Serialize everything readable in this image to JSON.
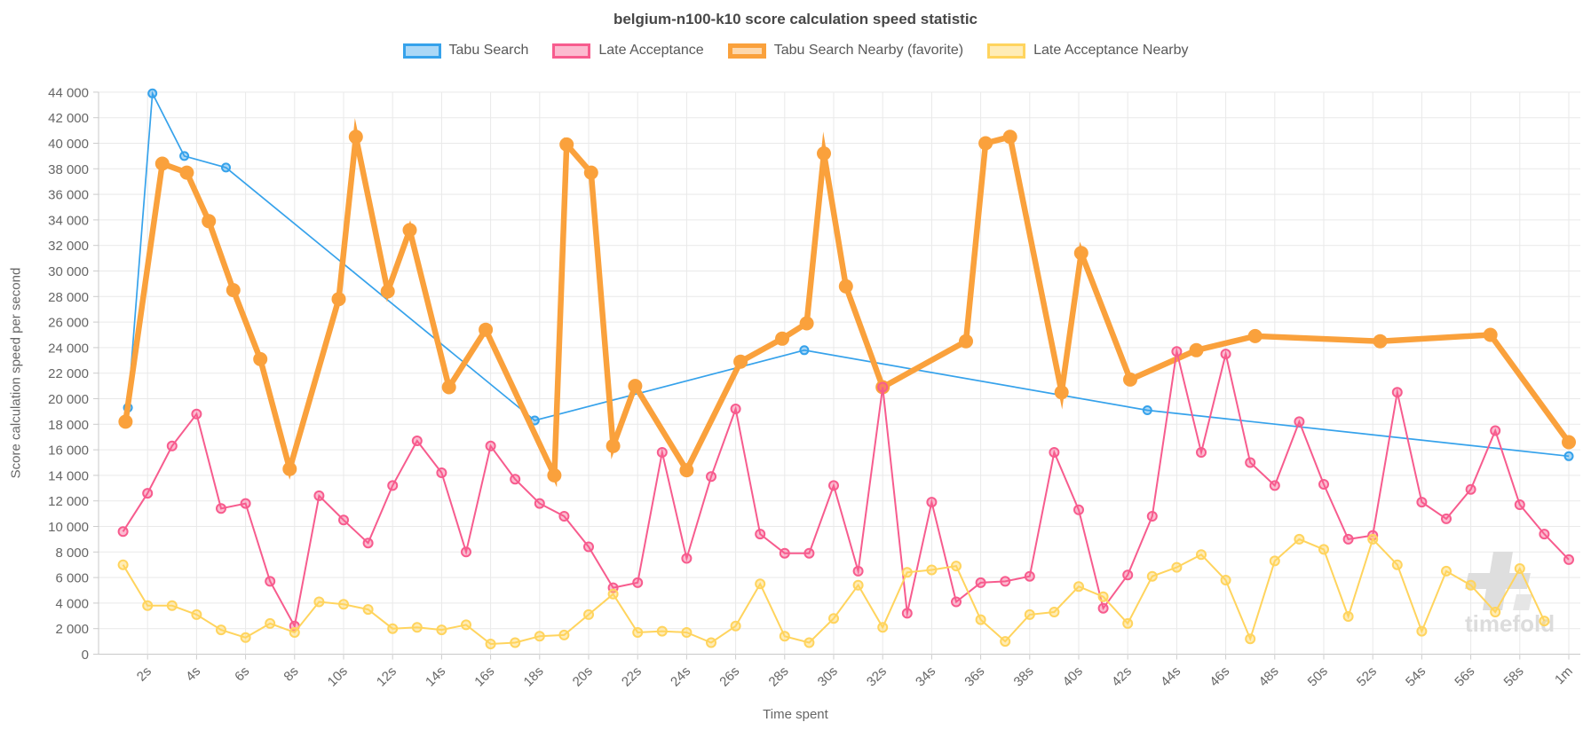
{
  "title": "belgium-n100-k10 score calculation speed statistic",
  "watermark": {
    "text": "timefold"
  },
  "chart_data": {
    "type": "line",
    "title": "belgium-n100-k10 score calculation speed statistic",
    "xlabel": "Time spent",
    "ylabel": "Score calculation speed per second",
    "ylim": [
      0,
      44000
    ],
    "y_tick_step": 2000,
    "grid": true,
    "legend_position": "top",
    "x_unit": "seconds",
    "xlim": [
      0,
      60.5
    ],
    "y_tick_labels": [
      "0",
      "2 000",
      "4 000",
      "6 000",
      "8 000",
      "10 000",
      "12 000",
      "14 000",
      "16 000",
      "18 000",
      "20 000",
      "22 000",
      "24 000",
      "26 000",
      "28 000",
      "30 000",
      "32 000",
      "34 000",
      "36 000",
      "38 000",
      "40 000",
      "42 000",
      "44 000"
    ],
    "x_ticks": [
      {
        "t": 2,
        "label": "2s"
      },
      {
        "t": 4,
        "label": "4s"
      },
      {
        "t": 6,
        "label": "6s"
      },
      {
        "t": 8,
        "label": "8s"
      },
      {
        "t": 10,
        "label": "10s"
      },
      {
        "t": 12,
        "label": "12s"
      },
      {
        "t": 14,
        "label": "14s"
      },
      {
        "t": 16,
        "label": "16s"
      },
      {
        "t": 18,
        "label": "18s"
      },
      {
        "t": 20,
        "label": "20s"
      },
      {
        "t": 22,
        "label": "22s"
      },
      {
        "t": 24,
        "label": "24s"
      },
      {
        "t": 26,
        "label": "26s"
      },
      {
        "t": 28,
        "label": "28s"
      },
      {
        "t": 30,
        "label": "30s"
      },
      {
        "t": 32,
        "label": "32s"
      },
      {
        "t": 34,
        "label": "34s"
      },
      {
        "t": 36,
        "label": "36s"
      },
      {
        "t": 38,
        "label": "38s"
      },
      {
        "t": 40,
        "label": "40s"
      },
      {
        "t": 42,
        "label": "42s"
      },
      {
        "t": 44,
        "label": "44s"
      },
      {
        "t": 46,
        "label": "46s"
      },
      {
        "t": 48,
        "label": "48s"
      },
      {
        "t": 50,
        "label": "50s"
      },
      {
        "t": 52,
        "label": "52s"
      },
      {
        "t": 54,
        "label": "54s"
      },
      {
        "t": 56,
        "label": "56s"
      },
      {
        "t": 58,
        "label": "58s"
      },
      {
        "t": 60,
        "label": "1m"
      }
    ],
    "series": [
      {
        "name": "Tabu Search",
        "color": "#36a2eb",
        "fill": "rgba(54,162,235,0.42)",
        "line_width": 1.7,
        "marker_r": 5.5,
        "marker_solid": false,
        "z": 0,
        "points": [
          [
            1.2,
            19300
          ],
          [
            2.2,
            43900
          ],
          [
            3.5,
            39000
          ],
          [
            5.2,
            38100
          ],
          [
            17.8,
            18300
          ],
          [
            28.8,
            23800
          ],
          [
            42.8,
            19100
          ],
          [
            60,
            15500
          ]
        ]
      },
      {
        "name": "Late Acceptance",
        "color": "#f75c8e",
        "fill": "rgba(247,92,142,0.42)",
        "line_width": 2,
        "marker_r": 6,
        "marker_solid": false,
        "z": 2,
        "points": [
          [
            1,
            9600
          ],
          [
            2,
            12600
          ],
          [
            3,
            16300
          ],
          [
            4,
            18800
          ],
          [
            5,
            11400
          ],
          [
            6,
            11800
          ],
          [
            7,
            5700
          ],
          [
            8,
            2200
          ],
          [
            9,
            12400
          ],
          [
            10,
            10500
          ],
          [
            11,
            8700
          ],
          [
            12,
            13200
          ],
          [
            13,
            16700
          ],
          [
            14,
            14200
          ],
          [
            15,
            8000
          ],
          [
            16,
            16300
          ],
          [
            17,
            13700
          ],
          [
            18,
            11800
          ],
          [
            19,
            10800
          ],
          [
            20,
            8400
          ],
          [
            21,
            5200
          ],
          [
            22,
            5600
          ],
          [
            23,
            15800
          ],
          [
            24,
            7500
          ],
          [
            25,
            13900
          ],
          [
            26,
            19200
          ],
          [
            27,
            9400
          ],
          [
            28,
            7900
          ],
          [
            29,
            7900
          ],
          [
            30,
            13200
          ],
          [
            31,
            6500
          ],
          [
            32,
            20900
          ],
          [
            33,
            3200
          ],
          [
            34,
            11900
          ],
          [
            35,
            4100
          ],
          [
            36,
            5600
          ],
          [
            37,
            5700
          ],
          [
            38,
            6100
          ],
          [
            39,
            15800
          ],
          [
            40,
            11300
          ],
          [
            41,
            3600
          ],
          [
            42,
            6200
          ],
          [
            43,
            10800
          ],
          [
            44,
            23700
          ],
          [
            45,
            15800
          ],
          [
            46,
            23500
          ],
          [
            47,
            15000
          ],
          [
            48,
            13200
          ],
          [
            49,
            18200
          ],
          [
            50,
            13300
          ],
          [
            51,
            9000
          ],
          [
            52,
            9300
          ],
          [
            53,
            20500
          ],
          [
            54,
            11900
          ],
          [
            55,
            10600
          ],
          [
            56,
            12900
          ],
          [
            57,
            17500
          ],
          [
            58,
            11700
          ],
          [
            59,
            9400
          ],
          [
            60,
            7400
          ]
        ]
      },
      {
        "name": "Tabu Search Nearby (favorite)",
        "color": "#faa13c",
        "fill": "rgba(250,161,60,0.42)",
        "line_width": 6.5,
        "marker_r": 8,
        "marker_solid": true,
        "z": 1,
        "points": [
          [
            1.1,
            18200
          ],
          [
            2.6,
            38400
          ],
          [
            3.6,
            37700
          ],
          [
            4.5,
            33900
          ],
          [
            5.5,
            28500
          ],
          [
            6.6,
            23100
          ],
          [
            7.8,
            14500
          ],
          [
            9.8,
            27800
          ],
          [
            10.5,
            40500
          ],
          [
            11.8,
            28400
          ],
          [
            12.7,
            33200
          ],
          [
            14.3,
            20900
          ],
          [
            15.8,
            25400
          ],
          [
            18.6,
            14000
          ],
          [
            19.1,
            39900
          ],
          [
            20.1,
            37700
          ],
          [
            21,
            16300
          ],
          [
            21.9,
            21000
          ],
          [
            24,
            14400
          ],
          [
            26.2,
            22900
          ],
          [
            27.9,
            24700
          ],
          [
            28.9,
            25900
          ],
          [
            29.6,
            39200
          ],
          [
            30.5,
            28800
          ],
          [
            32,
            20900
          ],
          [
            35.4,
            24500
          ],
          [
            36.2,
            40000
          ],
          [
            37.2,
            40500
          ],
          [
            39.3,
            20500
          ],
          [
            40.1,
            31400
          ],
          [
            42.1,
            21500
          ],
          [
            44.8,
            23800
          ],
          [
            47.2,
            24900
          ],
          [
            52.3,
            24500
          ],
          [
            56.8,
            25000
          ],
          [
            60,
            16600
          ]
        ]
      },
      {
        "name": "Late Acceptance Nearby",
        "color": "#ffd45e",
        "fill": "rgba(255,212,94,0.45)",
        "line_width": 2,
        "marker_r": 6,
        "marker_solid": false,
        "z": 3,
        "points": [
          [
            1,
            7000
          ],
          [
            2,
            3800
          ],
          [
            3,
            3800
          ],
          [
            4,
            3100
          ],
          [
            5,
            1900
          ],
          [
            6,
            1300
          ],
          [
            7,
            2400
          ],
          [
            8,
            1700
          ],
          [
            9,
            4100
          ],
          [
            10,
            3900
          ],
          [
            11,
            3500
          ],
          [
            12,
            2000
          ],
          [
            13,
            2100
          ],
          [
            14,
            1900
          ],
          [
            15,
            2300
          ],
          [
            16,
            800
          ],
          [
            17,
            900
          ],
          [
            18,
            1400
          ],
          [
            19,
            1500
          ],
          [
            20,
            3100
          ],
          [
            21,
            4700
          ],
          [
            22,
            1700
          ],
          [
            23,
            1800
          ],
          [
            24,
            1700
          ],
          [
            25,
            900
          ],
          [
            26,
            2200
          ],
          [
            27,
            5500
          ],
          [
            28,
            1400
          ],
          [
            29,
            900
          ],
          [
            30,
            2800
          ],
          [
            31,
            5400
          ],
          [
            32,
            2100
          ],
          [
            33,
            6400
          ],
          [
            34,
            6600
          ],
          [
            35,
            6900
          ],
          [
            36,
            2700
          ],
          [
            37,
            1000
          ],
          [
            38,
            3100
          ],
          [
            39,
            3300
          ],
          [
            40,
            5300
          ],
          [
            41,
            4500
          ],
          [
            42,
            2400
          ],
          [
            43,
            6100
          ],
          [
            44,
            6800
          ],
          [
            45,
            7800
          ],
          [
            46,
            5800
          ],
          [
            47,
            1200
          ],
          [
            48,
            7300
          ],
          [
            49,
            9000
          ],
          [
            50,
            8200
          ],
          [
            51,
            2950
          ],
          [
            52,
            9000
          ],
          [
            53,
            7000
          ],
          [
            54,
            1800
          ],
          [
            55,
            6500
          ],
          [
            56,
            5400
          ],
          [
            57,
            3300
          ],
          [
            58,
            6700
          ],
          [
            59,
            2600
          ]
        ]
      }
    ]
  }
}
